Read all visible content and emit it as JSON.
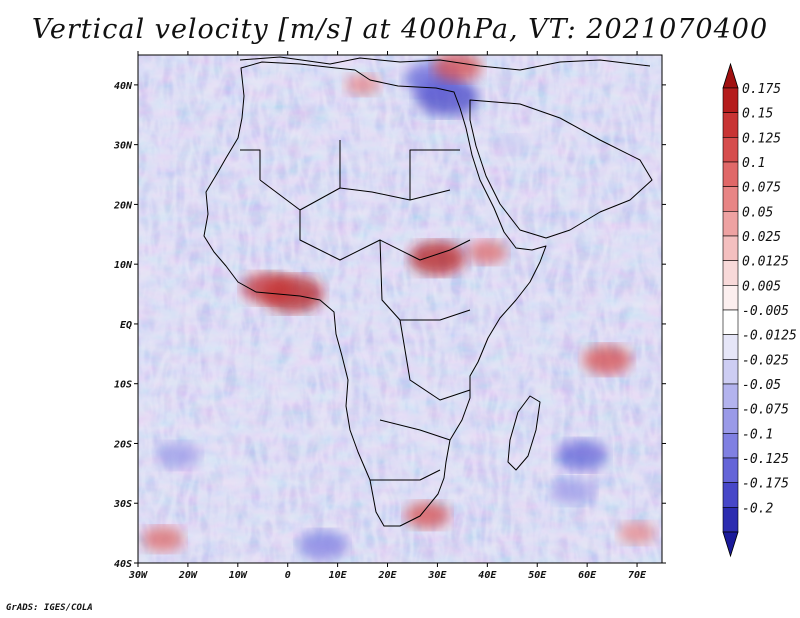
{
  "title": "Vertical velocity [m/s] at 400hPa, VT: 2021070400",
  "credit": "GrADS: IGES/COLA",
  "map": {
    "lon_range": [
      -30,
      75
    ],
    "lat_range": [
      -40,
      45
    ],
    "lat_ticks": [
      {
        "value": 40,
        "label": "40N"
      },
      {
        "value": 30,
        "label": "30N"
      },
      {
        "value": 20,
        "label": "20N"
      },
      {
        "value": 10,
        "label": "10N"
      },
      {
        "value": 0,
        "label": "EQ"
      },
      {
        "value": -10,
        "label": "10S"
      },
      {
        "value": -20,
        "label": "20S"
      },
      {
        "value": -30,
        "label": "30S"
      },
      {
        "value": -40,
        "label": "40S"
      }
    ],
    "lon_ticks": [
      {
        "value": -30,
        "label": "30W"
      },
      {
        "value": -20,
        "label": "20W"
      },
      {
        "value": -10,
        "label": "10W"
      },
      {
        "value": 0,
        "label": "0"
      },
      {
        "value": 10,
        "label": "10E"
      },
      {
        "value": 20,
        "label": "20E"
      },
      {
        "value": 30,
        "label": "30E"
      },
      {
        "value": 40,
        "label": "40E"
      },
      {
        "value": 50,
        "label": "50E"
      },
      {
        "value": 60,
        "label": "60E"
      },
      {
        "value": 70,
        "label": "70E"
      }
    ],
    "colors": {
      "background_field": "#d7d7f2",
      "coast": "#000000"
    }
  },
  "colorbar": {
    "levels": [
      {
        "label": "0.175",
        "color": "#b51c1c"
      },
      {
        "label": "0.15",
        "color": "#c83434"
      },
      {
        "label": "0.125",
        "color": "#d64d4d"
      },
      {
        "label": "0.1",
        "color": "#e06868"
      },
      {
        "label": "0.075",
        "color": "#e88585"
      },
      {
        "label": "0.05",
        "color": "#eea2a2"
      },
      {
        "label": "0.025",
        "color": "#f4bfbf"
      },
      {
        "label": "0.0125",
        "color": "#f8d9d9"
      },
      {
        "label": "0.005",
        "color": "#fcefef"
      },
      {
        "label": "-0.005",
        "color": "#ffffff"
      },
      {
        "label": "-0.0125",
        "color": "#e6e6f8"
      },
      {
        "label": "-0.025",
        "color": "#cdcdf3"
      },
      {
        "label": "-0.05",
        "color": "#b3b3ee"
      },
      {
        "label": "-0.075",
        "color": "#9a9ae8"
      },
      {
        "label": "-0.1",
        "color": "#8080e2"
      },
      {
        "label": "-0.125",
        "color": "#6464d8"
      },
      {
        "label": "-0.175",
        "color": "#4747c8"
      },
      {
        "label": "-0.2",
        "color": "#2c2cb0"
      }
    ],
    "top_color": "#a01010",
    "bottom_color": "#1a1a9a"
  },
  "hotspots": [
    {
      "lon": 32,
      "lat": 38,
      "value": -0.18
    },
    {
      "lon": 29,
      "lat": 41,
      "value": -0.15
    },
    {
      "lon": 1,
      "lat": 5,
      "value": 0.17
    },
    {
      "lon": -4,
      "lat": 6,
      "value": 0.13
    },
    {
      "lon": 30,
      "lat": 11,
      "value": 0.15
    },
    {
      "lon": 40,
      "lat": 12,
      "value": 0.08
    },
    {
      "lon": 34,
      "lat": 43,
      "value": 0.12
    },
    {
      "lon": 64,
      "lat": -6,
      "value": 0.12
    },
    {
      "lon": 59,
      "lat": -22,
      "value": -0.13
    },
    {
      "lon": 57,
      "lat": -28,
      "value": -0.1
    },
    {
      "lon": 7,
      "lat": -37,
      "value": -0.12
    },
    {
      "lon": -22,
      "lat": -22,
      "value": -0.1
    },
    {
      "lon": 28,
      "lat": -32,
      "value": 0.1
    },
    {
      "lon": -25,
      "lat": -36,
      "value": 0.09
    },
    {
      "lon": 70,
      "lat": -35,
      "value": 0.07
    },
    {
      "lon": 15,
      "lat": 40,
      "value": 0.06
    },
    {
      "lon": 45,
      "lat": 30,
      "value": -0.05
    }
  ]
}
